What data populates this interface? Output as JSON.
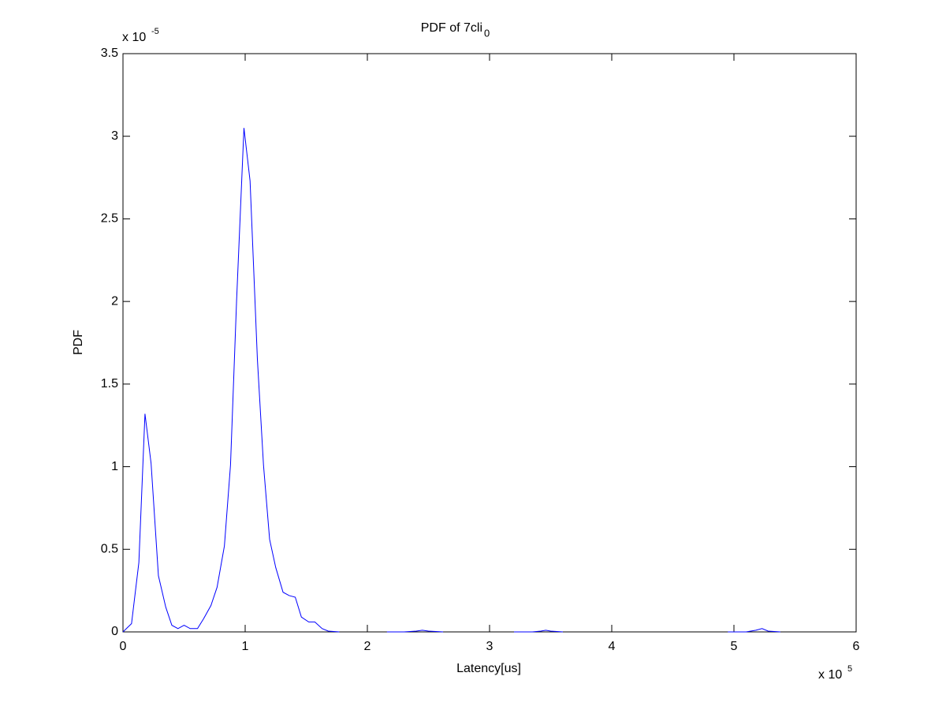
{
  "chart_data": {
    "type": "line",
    "title": "PDF of 7cli",
    "title_subscript": "0",
    "x_label": "Latency[us]",
    "y_label": "PDF",
    "x_multiplier": {
      "base": "x 10",
      "exponent": "5"
    },
    "y_multiplier": {
      "base": "x 10",
      "exponent": "-5"
    },
    "color": "#0000ff",
    "x": [
      0,
      0.07,
      0.13,
      0.18,
      0.23,
      0.29,
      0.35,
      0.4,
      0.45,
      0.5,
      0.55,
      0.61,
      0.66,
      0.72,
      0.77,
      0.83,
      0.88,
      0.93,
      0.99,
      1.04,
      1.1,
      1.15,
      1.2,
      1.25,
      1.31,
      1.36,
      1.41,
      1.46,
      1.52,
      1.57,
      1.63,
      1.68,
      1.77,
      1.97,
      2.16,
      2.3,
      2.4,
      2.45,
      2.5,
      2.62,
      2.9,
      3.2,
      3.35,
      3.42,
      3.46,
      3.5,
      3.6,
      4.3,
      4.95,
      5.1,
      5.18,
      5.23,
      5.28,
      5.38
    ],
    "values": [
      0,
      0.05,
      0.42,
      1.32,
      1.02,
      0.34,
      0.15,
      0.04,
      0.02,
      0.04,
      0.02,
      0.02,
      0.08,
      0.16,
      0.27,
      0.52,
      1.01,
      2.01,
      3.05,
      2.73,
      1.65,
      1.01,
      0.56,
      0.39,
      0.24,
      0.22,
      0.21,
      0.09,
      0.06,
      0.06,
      0.02,
      0.005,
      0,
      null,
      0,
      0,
      0.005,
      0.01,
      0.005,
      0,
      null,
      0,
      0,
      0.005,
      0.01,
      0.005,
      0,
      null,
      0,
      0,
      0.01,
      0.02,
      0.005,
      0
    ],
    "xlim": [
      0,
      6
    ],
    "xticks": [
      0,
      1,
      2,
      3,
      4,
      5,
      6
    ],
    "ylim": [
      0,
      3.5
    ],
    "yticks": [
      0,
      0.5,
      1,
      1.5,
      2,
      2.5,
      3,
      3.5
    ],
    "grid": false
  }
}
